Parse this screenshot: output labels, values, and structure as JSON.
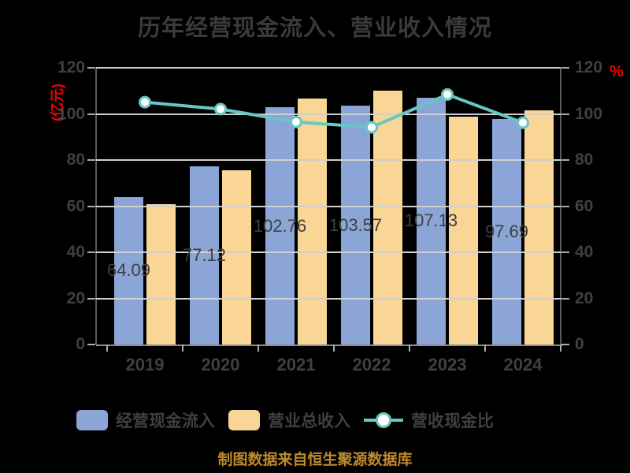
{
  "title": "历年经营现金流入、营业收入情况",
  "footer": "制图数据来自恒生聚源数据库",
  "axes": {
    "left_unit": "(亿元)",
    "right_unit": "%",
    "y_tick_values": [
      0,
      20,
      40,
      60,
      80,
      100,
      120
    ],
    "x_tick_labels": [
      "2019",
      "2020",
      "2021",
      "2022",
      "2023",
      "2024"
    ]
  },
  "colors": {
    "background": "#000000",
    "bar_cash_inflow": "#8AA5D6",
    "bar_revenue": "#FAD696",
    "ratio_line": "#66C7C5",
    "marker_fill": "#FFFFFF",
    "gridline": "#CFCFCF",
    "axis_text": "#404040",
    "unit_text_red": "#EE0000",
    "footer_text": "#BF8B2B",
    "title_text": "#3A3A3A"
  },
  "chart_data": {
    "type": "bar+line",
    "title": "历年经营现金流入、营业收入情况",
    "categories": [
      "2019",
      "2020",
      "2021",
      "2022",
      "2023",
      "2024"
    ],
    "series": [
      {
        "name": "经营现金流入",
        "type": "bar",
        "axis": "left",
        "color": "#8AA5D6",
        "values": [
          64.09,
          77.12,
          102.76,
          103.57,
          107.13,
          97.69
        ],
        "labels": [
          "64.09",
          "77.12",
          "102.76",
          "103.57",
          "107.13",
          "97.69"
        ]
      },
      {
        "name": "营业总收入",
        "type": "bar",
        "axis": "left",
        "color": "#FAD696",
        "values": [
          61.0,
          75.5,
          106.5,
          110.0,
          98.8,
          101.5
        ]
      },
      {
        "name": "营收现金比",
        "type": "line",
        "axis": "right",
        "color": "#66C7C5",
        "values": [
          105.1,
          102.1,
          96.5,
          94.2,
          108.4,
          96.2
        ]
      }
    ],
    "ylabel": "(亿元)",
    "y2label": "%",
    "ylim": [
      0,
      120
    ],
    "y2lim": [
      0,
      120
    ],
    "grid": true,
    "legend_position": "bottom"
  }
}
